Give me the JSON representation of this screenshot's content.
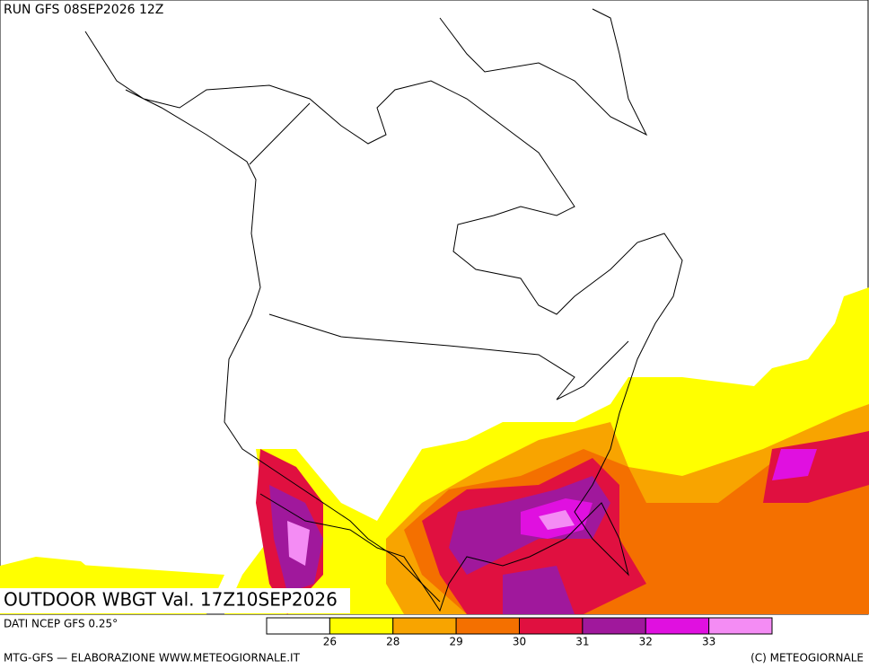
{
  "header": {
    "run": "RUN GFS 08SEP2026 12Z"
  },
  "map": {
    "title": "OUTDOOR WBGT Val. 17Z10SEP2026"
  },
  "footer": {
    "source": "DATI NCEP GFS 0.25°",
    "credit": "MTG-GFS — ELABORAZIONE WWW.METEOGIORNALE.IT",
    "copyright": "(C) METEOGIORNALE"
  },
  "legend": {
    "colors": [
      "#ffffff",
      "#ffff00",
      "#f8a400",
      "#f47000",
      "#e01040",
      "#a0189c",
      "#e010e0",
      "#f48cf4"
    ],
    "ticks": [
      26,
      28,
      29,
      30,
      31,
      32,
      33
    ]
  }
}
